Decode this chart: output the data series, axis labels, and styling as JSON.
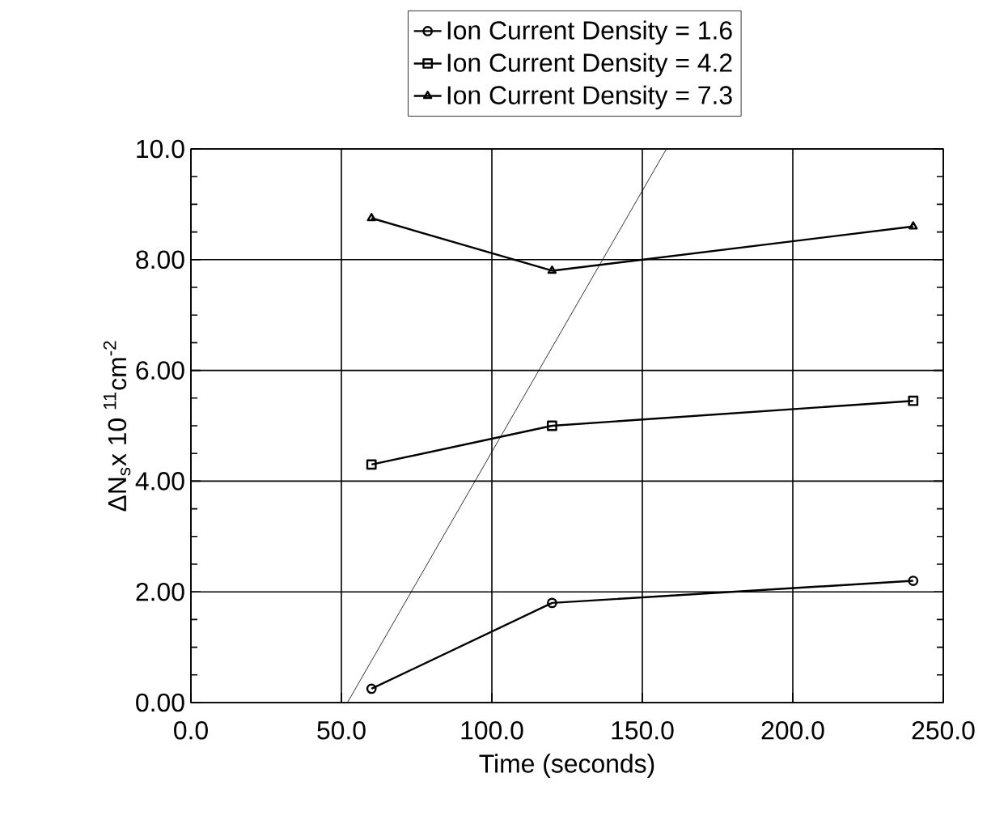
{
  "chart_data": {
    "type": "line",
    "xlabel": "Time (seconds)",
    "ylabel": "ΔN$_{s}$x 10 $^{11}$cm$^{-2}$",
    "xlim": [
      0,
      250
    ],
    "ylim": [
      0,
      10
    ],
    "xticks": [
      {
        "value": 0,
        "label": "0.0"
      },
      {
        "value": 50,
        "label": "50.0"
      },
      {
        "value": 100,
        "label": "100.0"
      },
      {
        "value": 150,
        "label": "150.0"
      },
      {
        "value": 200,
        "label": "200.0"
      },
      {
        "value": 250,
        "label": "250.0"
      }
    ],
    "yticks": [
      {
        "value": 0,
        "label": "0.00"
      },
      {
        "value": 2,
        "label": "2.00"
      },
      {
        "value": 4,
        "label": "4.00"
      },
      {
        "value": 6,
        "label": "6.00"
      },
      {
        "value": 8,
        "label": "8.00"
      },
      {
        "value": 10,
        "label": "10.0"
      }
    ],
    "grid": true,
    "legend": "top",
    "line_style": "solid",
    "series": [
      {
        "name": "Ion Current Density = 1.6",
        "color": "#000000",
        "marker": "circle",
        "x": [
          60,
          120,
          240
        ],
        "values": [
          0.25,
          1.8,
          2.2
        ]
      },
      {
        "name": "Ion Current Density = 4.2",
        "color": "#000000",
        "marker": "square",
        "x": [
          60,
          120,
          240
        ],
        "values": [
          4.3,
          5.0,
          5.45
        ]
      },
      {
        "name": "Ion Current Density = 7.3",
        "color": "#000000",
        "marker": "triangle",
        "x": [
          60,
          120,
          240
        ],
        "values": [
          8.75,
          7.8,
          8.6
        ]
      },
      {
        "color": "#000000",
        "marker": "none",
        "x": [
          52,
          158
        ],
        "values": [
          0,
          10
        ]
      }
    ]
  }
}
